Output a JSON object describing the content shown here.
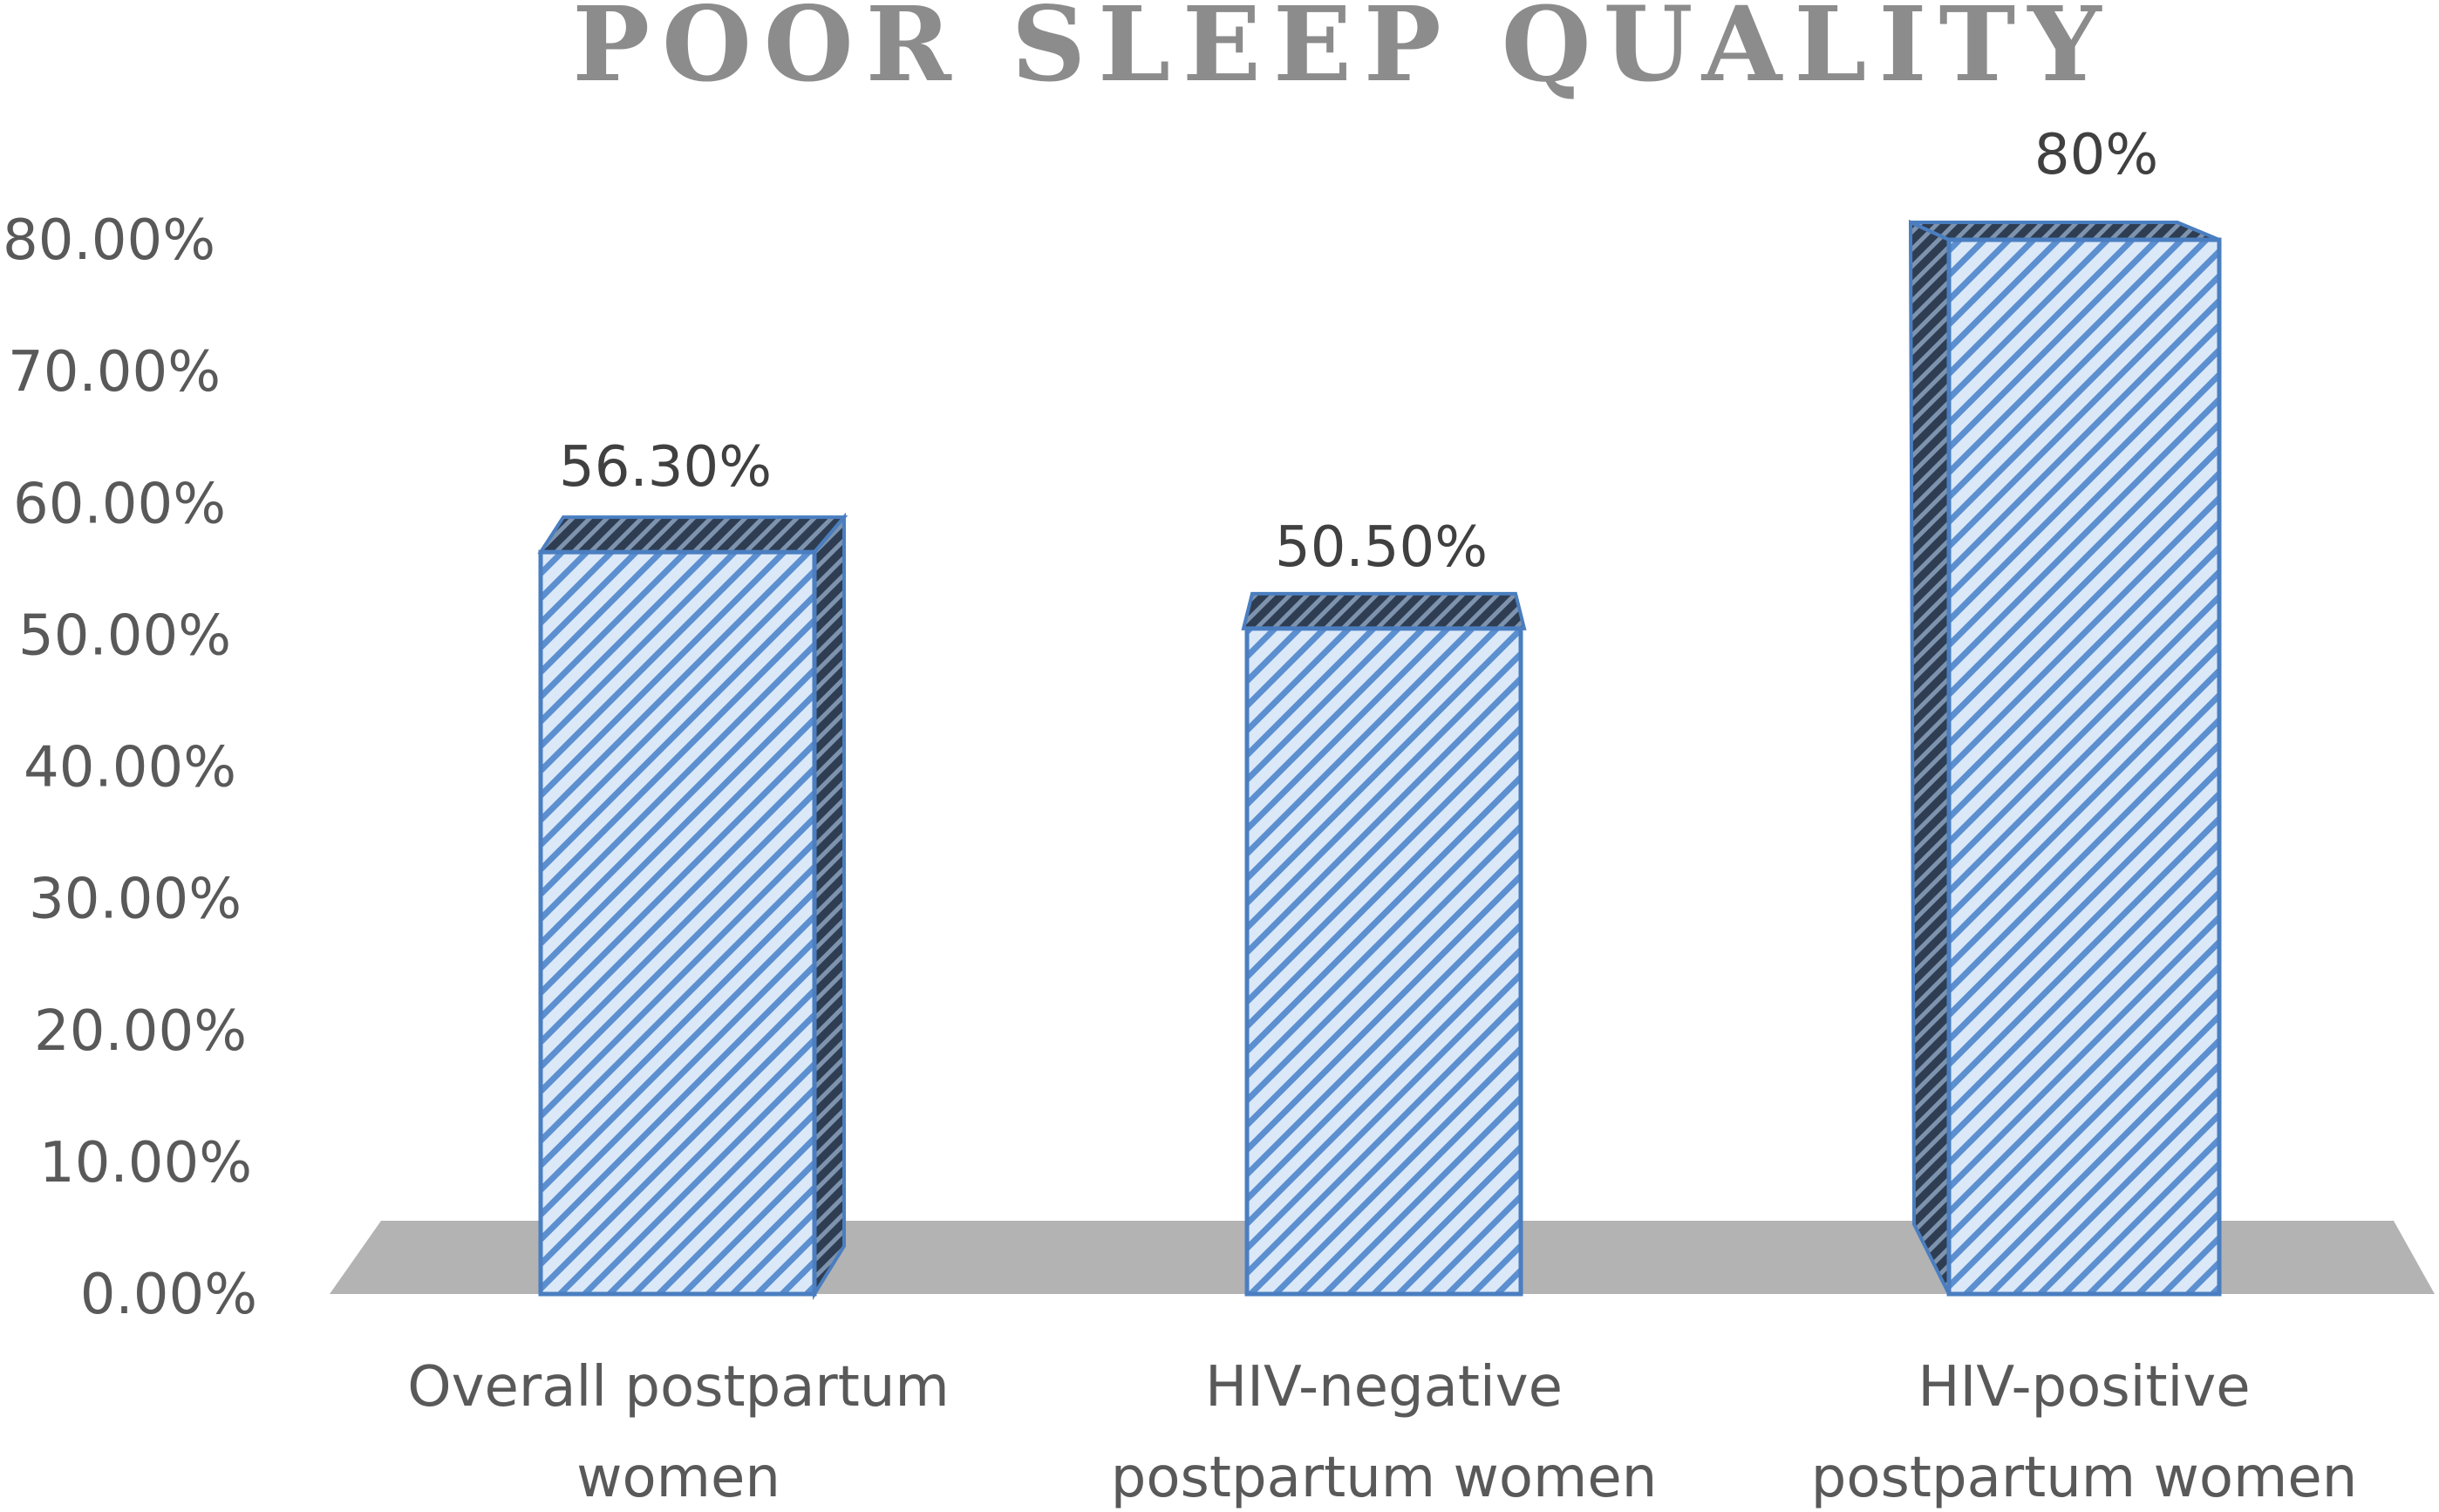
{
  "chart_data": {
    "type": "bar",
    "title": "POOR SLEEP QUALITY",
    "xlabel": "",
    "ylabel": "",
    "categories": [
      [
        "Overall postpartum",
        "women"
      ],
      [
        "HIV-negative",
        "postpartum women"
      ],
      [
        "HIV-positive",
        "postpartum women"
      ]
    ],
    "values": [
      56.3,
      50.5,
      80
    ],
    "data_labels": [
      "56.30%",
      "50.50%",
      "80%"
    ],
    "y_ticks": [
      0,
      10,
      20,
      30,
      40,
      50,
      60,
      70,
      80
    ],
    "y_tick_labels": [
      "0.00%",
      "10.00%",
      "20.00%",
      "30.00%",
      "40.00%",
      "50.00%",
      "60.00%",
      "70.00%",
      "80.00%"
    ],
    "ylim": [
      0,
      80
    ],
    "grid": false,
    "legend": "none",
    "colors": {
      "bar_face": "#dbe8f8",
      "bar_stripe": "#5b8fd0",
      "bar_edge": "#4a7ec0",
      "bar_side": "#3c4e66",
      "floor": "#b3b3b3"
    }
  }
}
